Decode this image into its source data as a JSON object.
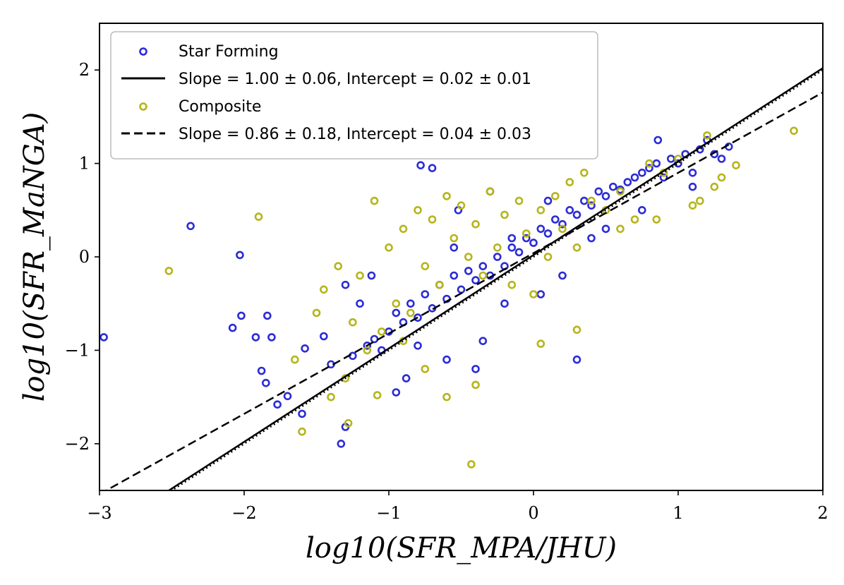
{
  "chart_data": {
    "type": "scatter",
    "xlabel": "log10(SFR_MPA/JHU)",
    "ylabel": "log10(SFR_MaNGA)",
    "xlim": [
      -3,
      2
    ],
    "ylim": [
      -2.5,
      2.5
    ],
    "xticks": [
      -3,
      -2,
      -1,
      0,
      1,
      2
    ],
    "yticks": [
      -2,
      -1,
      0,
      1,
      2
    ],
    "xtick_labels": [
      "−3",
      "−2",
      "−1",
      "0",
      "1",
      "2"
    ],
    "ytick_labels": [
      "−2",
      "−1",
      "0",
      "1",
      "2"
    ],
    "grid": false,
    "legend_position": "top-left",
    "series": [
      {
        "name": "Star Forming",
        "kind": "points",
        "color": "#2b2bd6",
        "x": [
          -2.97,
          -2.37,
          -2.03,
          -2.02,
          -2.08,
          -1.92,
          -1.88,
          -1.85,
          -1.84,
          -1.81,
          -1.77,
          -1.7,
          -1.6,
          -1.58,
          -1.45,
          -1.4,
          -1.33,
          -1.3,
          -1.25,
          -1.15,
          -1.1,
          -1.05,
          -1.0,
          -0.95,
          -0.9,
          -0.85,
          -0.8,
          -0.75,
          -0.7,
          -0.65,
          -0.6,
          -0.55,
          -0.5,
          -0.45,
          -0.4,
          -0.35,
          -0.3,
          -0.25,
          -0.2,
          -0.15,
          -0.1,
          -0.05,
          0.0,
          0.05,
          0.1,
          0.15,
          0.2,
          0.25,
          0.3,
          0.35,
          0.4,
          0.45,
          0.5,
          0.55,
          0.6,
          0.65,
          0.7,
          0.75,
          0.8,
          0.85,
          0.9,
          0.95,
          1.0,
          1.05,
          1.1,
          1.15,
          1.2,
          1.25,
          1.3,
          1.35,
          -0.78,
          -0.52,
          -1.3,
          -0.7,
          -0.4,
          0.3,
          0.86,
          -0.2,
          -0.6,
          -0.95,
          -1.12,
          -0.3,
          0.1,
          0.5,
          -0.88,
          -1.2,
          -0.35,
          0.05,
          0.4,
          0.75,
          1.1,
          -0.15,
          -0.55,
          0.2,
          -0.8
        ],
        "y": [
          -0.86,
          0.33,
          0.02,
          -0.63,
          -0.76,
          -0.86,
          -1.22,
          -1.35,
          -0.63,
          -0.86,
          -1.58,
          -1.49,
          -1.68,
          -0.98,
          -0.85,
          -1.15,
          -2.0,
          -1.82,
          -1.06,
          -0.95,
          -0.88,
          -1.0,
          -0.8,
          -0.6,
          -0.7,
          -0.5,
          -0.65,
          -0.4,
          -0.55,
          -0.3,
          -0.45,
          -0.2,
          -0.35,
          -0.15,
          -0.25,
          -0.1,
          -0.2,
          0.0,
          -0.1,
          0.1,
          0.05,
          0.2,
          0.15,
          0.3,
          0.25,
          0.4,
          0.35,
          0.5,
          0.45,
          0.6,
          0.55,
          0.7,
          0.65,
          0.75,
          0.72,
          0.8,
          0.85,
          0.9,
          0.95,
          1.0,
          0.85,
          1.05,
          1.0,
          1.1,
          0.9,
          1.15,
          1.25,
          1.1,
          1.05,
          1.18,
          0.98,
          0.5,
          -0.3,
          0.95,
          -1.2,
          -1.1,
          1.25,
          -0.5,
          -1.1,
          -1.45,
          -0.2,
          0.7,
          0.6,
          0.3,
          -1.3,
          -0.5,
          -0.9,
          -0.4,
          0.2,
          0.5,
          0.75,
          0.2,
          0.1,
          -0.2,
          -0.95
        ]
      },
      {
        "name": "Composite",
        "kind": "points",
        "color": "#b5b51a",
        "x": [
          -2.52,
          -1.9,
          -1.65,
          -1.6,
          -1.5,
          -1.45,
          -1.4,
          -1.35,
          -1.3,
          -1.25,
          -1.2,
          -1.15,
          -1.1,
          -1.05,
          -1.0,
          -0.95,
          -0.9,
          -0.85,
          -0.8,
          -0.75,
          -0.7,
          -0.65,
          -0.6,
          -0.55,
          -0.5,
          -0.45,
          -0.4,
          -0.35,
          -0.3,
          -0.25,
          -0.2,
          -0.15,
          -0.1,
          -0.05,
          0.0,
          0.05,
          0.1,
          0.15,
          0.2,
          0.25,
          0.3,
          0.35,
          0.4,
          0.5,
          0.6,
          0.7,
          0.8,
          0.9,
          1.0,
          1.1,
          1.2,
          1.3,
          1.4,
          1.8,
          -0.43,
          -0.4,
          0.05,
          0.3,
          0.6,
          0.85,
          -1.08,
          -0.75,
          -0.6,
          -0.9,
          -1.28,
          1.15,
          1.25
        ],
        "y": [
          -0.15,
          0.43,
          -1.1,
          -1.87,
          -0.6,
          -0.35,
          -1.5,
          -0.1,
          -1.3,
          -0.7,
          -0.2,
          -1.0,
          0.6,
          -0.8,
          0.1,
          -0.5,
          0.3,
          -0.6,
          0.5,
          -0.1,
          0.4,
          -0.3,
          0.65,
          0.2,
          0.55,
          0.0,
          0.35,
          -0.2,
          0.7,
          0.1,
          0.45,
          -0.3,
          0.6,
          0.25,
          -0.4,
          0.5,
          0.0,
          0.65,
          0.3,
          0.8,
          0.1,
          0.9,
          0.6,
          0.5,
          0.7,
          0.4,
          1.0,
          0.9,
          1.05,
          0.55,
          1.3,
          0.85,
          0.98,
          1.35,
          -2.22,
          -1.37,
          -0.93,
          -0.78,
          0.3,
          0.4,
          -1.48,
          -1.2,
          -1.5,
          -0.9,
          -1.78,
          0.6,
          0.75
        ]
      },
      {
        "name": "Slope = 1.00±0.06, Intercept = 0.02±0.01",
        "kind": "line",
        "style": "solid",
        "slope": 1.0,
        "intercept": 0.02,
        "x": [
          -3,
          2
        ],
        "y": [
          -2.98,
          2.02
        ]
      },
      {
        "name": "Slope = 0.86±0.18, Intercept = 0.04±0.03",
        "kind": "line",
        "style": "dashed",
        "slope": 0.86,
        "intercept": 0.04,
        "x": [
          -3,
          2
        ],
        "y": [
          -2.54,
          1.76
        ]
      },
      {
        "name": "",
        "kind": "line",
        "style": "dotted",
        "slope": 1.0,
        "intercept": 0.0,
        "x": [
          -3,
          2
        ],
        "y": [
          -3.0,
          2.0
        ]
      }
    ],
    "legend": [
      {
        "label": "Star Forming",
        "marker": "circle",
        "color": "#2b2bd6"
      },
      {
        "label": "Slope = 1.00 ± 0.06, Intercept = 0.02 ± 0.01",
        "marker": "solid-line",
        "color": "#000000"
      },
      {
        "label": "Composite",
        "marker": "circle",
        "color": "#b5b51a"
      },
      {
        "label": "Slope = 0.86 ± 0.18, Intercept = 0.04 ± 0.03",
        "marker": "dashed-line",
        "color": "#000000"
      }
    ]
  }
}
